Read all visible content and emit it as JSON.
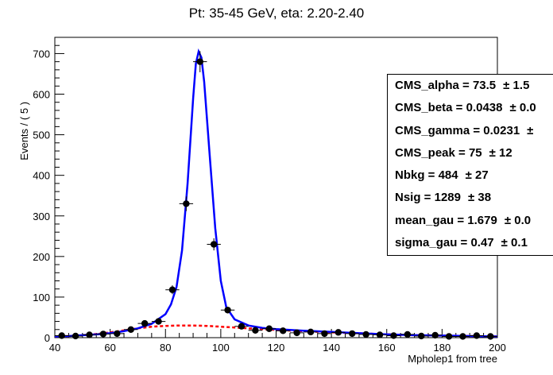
{
  "chart_data": {
    "type": "scatter",
    "title": "Pt: 35-45 GeV, eta: 2.20-2.40",
    "xlabel": "Mpholep1 from tree",
    "ylabel": "Events / ( 5 )",
    "xlim": [
      40,
      200
    ],
    "ylim": [
      0,
      740
    ],
    "x_ticks": [
      40,
      60,
      80,
      100,
      120,
      140,
      160,
      180,
      200
    ],
    "y_ticks": [
      0,
      100,
      200,
      300,
      400,
      500,
      600,
      700
    ],
    "grid": false,
    "legend": "none",
    "bin_width": 5,
    "series": [
      {
        "kind": "data-points",
        "color": "#000000",
        "x": [
          42.5,
          47.5,
          52.5,
          57.5,
          62.5,
          67.5,
          72.5,
          77.5,
          82.5,
          87.5,
          92.5,
          97.5,
          102.5,
          107.5,
          112.5,
          117.5,
          122.5,
          127.5,
          132.5,
          137.5,
          142.5,
          147.5,
          152.5,
          157.5,
          162.5,
          167.5,
          172.5,
          177.5,
          182.5,
          187.5,
          192.5,
          197.5
        ],
        "y": [
          5,
          4,
          7,
          9,
          10,
          20,
          35,
          40,
          118,
          330,
          680,
          230,
          68,
          28,
          18,
          22,
          17,
          12,
          14,
          10,
          13,
          10,
          8,
          7,
          5,
          8,
          4,
          6,
          3,
          3,
          5,
          3
        ],
        "yerr": [
          2,
          2,
          3,
          3,
          3,
          4,
          6,
          6,
          11,
          18,
          26,
          15,
          8,
          5,
          4,
          5,
          4,
          3,
          4,
          3,
          4,
          3,
          3,
          3,
          2,
          3,
          2,
          2,
          2,
          2,
          2,
          2
        ]
      },
      {
        "kind": "total-fit",
        "color": "#0000ff",
        "x": [
          40,
          45,
          50,
          55,
          60,
          65,
          70,
          75,
          80,
          82,
          84,
          86,
          88,
          90,
          91,
          92,
          93,
          94,
          96,
          98,
          100,
          102,
          105,
          110,
          115,
          120,
          130,
          140,
          150,
          160,
          170,
          180,
          190,
          200
        ],
        "y": [
          3,
          4,
          6,
          8,
          11,
          16,
          23,
          34,
          58,
          82,
          125,
          215,
          380,
          590,
          675,
          705,
          690,
          630,
          450,
          270,
          140,
          75,
          45,
          30,
          24,
          21,
          17,
          14,
          11,
          8,
          6,
          5,
          4,
          3
        ]
      },
      {
        "kind": "background-fit",
        "color": "#ff0000",
        "x": [
          40,
          45,
          50,
          55,
          60,
          65,
          70,
          75,
          80,
          85,
          90,
          95,
          100,
          105,
          110,
          115,
          120,
          130,
          140,
          150,
          160,
          170,
          180,
          190,
          200
        ],
        "y": [
          3,
          4,
          6,
          9,
          13,
          18,
          23,
          27,
          29,
          30,
          30,
          29,
          27,
          25,
          23,
          21,
          19,
          16,
          13,
          11,
          8,
          6,
          5,
          4,
          3
        ]
      }
    ]
  },
  "stats": [
    {
      "label": "CMS_alpha =  73.5",
      "err": "± 1.5"
    },
    {
      "label": "CMS_beta =  0.0438",
      "err": "± 0.0"
    },
    {
      "label": "CMS_gamma =  0.0231",
      "err": "±"
    },
    {
      "label": "CMS_peak =  75",
      "err": "± 12"
    },
    {
      "label": "Nbkg =  484",
      "err": "± 27"
    },
    {
      "label": "Nsig =  1289",
      "err": "± 38"
    },
    {
      "label": "mean_gau =  1.679",
      "err": "± 0.0"
    },
    {
      "label": "sigma_gau =  0.47",
      "err": "± 0.1"
    }
  ]
}
